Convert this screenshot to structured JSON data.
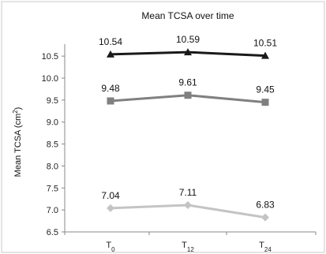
{
  "chart_data": {
    "type": "line",
    "title": "Mean TCSA over time",
    "ylabel_main": "Mean TCSA (cm",
    "ylabel_sup": "2",
    "ylabel_tail": ")",
    "categories": [
      {
        "base": "T",
        "sub": "0"
      },
      {
        "base": "T",
        "sub": "12"
      },
      {
        "base": "T",
        "sub": "24"
      }
    ],
    "ylim": [
      6.5,
      10.7
    ],
    "yticks": [
      "6.5",
      "7.0",
      "7.5",
      "8.0",
      "8.5",
      "9.0",
      "9.5",
      "10.0",
      "10.5"
    ],
    "grid": false,
    "series": [
      {
        "values": [
          10.54,
          10.59,
          10.51
        ],
        "labels": [
          "10.54",
          "10.59",
          "10.51"
        ],
        "color": "#1a1a1a",
        "marker": "triangle"
      },
      {
        "values": [
          9.48,
          9.61,
          9.45
        ],
        "labels": [
          "9.48",
          "9.61",
          "9.45"
        ],
        "color": "#808080",
        "marker": "square"
      },
      {
        "values": [
          7.04,
          7.11,
          6.83
        ],
        "labels": [
          "7.04",
          "7.11",
          "6.83"
        ],
        "color": "#c4c4c4",
        "marker": "diamond"
      }
    ]
  }
}
